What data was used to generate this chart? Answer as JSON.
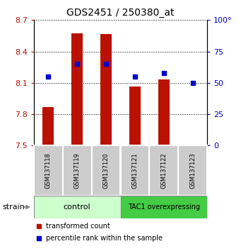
{
  "title": "GDS2451 / 250380_at",
  "samples": [
    "GSM137118",
    "GSM137119",
    "GSM137120",
    "GSM137121",
    "GSM137122",
    "GSM137123"
  ],
  "red_values": [
    7.865,
    8.575,
    8.565,
    8.065,
    8.13,
    7.51
  ],
  "blue_values": [
    55,
    65,
    65,
    55,
    58,
    50
  ],
  "ylim_left": [
    7.5,
    8.7
  ],
  "ylim_right": [
    0,
    100
  ],
  "yticks_left": [
    7.5,
    7.8,
    8.1,
    8.4,
    8.7
  ],
  "yticks_right": [
    0,
    25,
    50,
    75,
    100
  ],
  "bar_color": "#bb1100",
  "dot_color": "#0000cc",
  "bar_bottom": 7.5,
  "bar_width": 0.4,
  "group1_label": "control",
  "group2_label": "TAC1 overexpressing",
  "group1_color": "#ccffcc",
  "group2_color": "#44cc44",
  "group_border_color": "#888888",
  "sample_bg_color": "#cccccc",
  "strain_label": "strain",
  "legend_items": [
    {
      "color": "#bb1100",
      "label": "transformed count"
    },
    {
      "color": "#0000cc",
      "label": "percentile rank within the sample"
    }
  ],
  "right_tick_labels": [
    "0",
    "25",
    "50",
    "75",
    "100°"
  ],
  "title_fontsize": 10,
  "tick_fontsize": 8,
  "label_fontsize": 7,
  "sample_fontsize": 6
}
